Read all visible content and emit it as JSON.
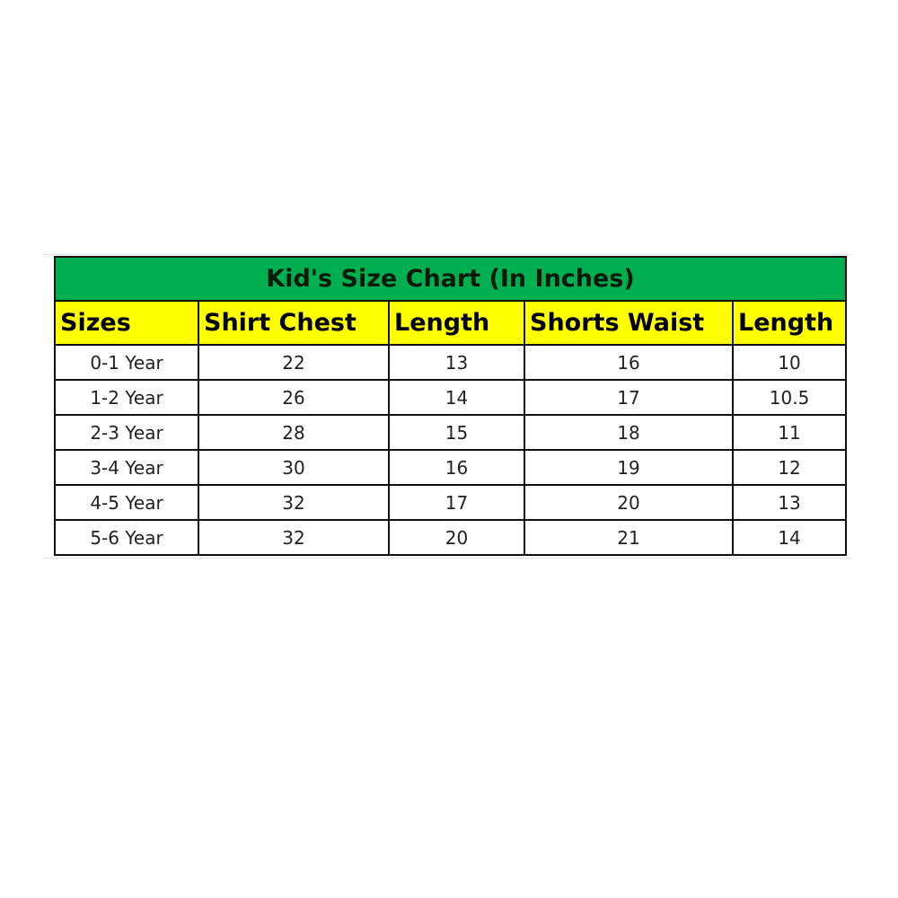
{
  "title": "Kid's Size Chart (In Inches)",
  "colors": {
    "title_bg": "#00b050",
    "header_bg": "#ffff00"
  },
  "headers": [
    "Sizes",
    "Shirt Chest",
    "Length",
    "Shorts Waist",
    "Length"
  ],
  "rows": [
    [
      "0-1 Year",
      "22",
      "13",
      "16",
      "10"
    ],
    [
      "1-2 Year",
      "26",
      "14",
      "17",
      "10.5"
    ],
    [
      "2-3 Year",
      "28",
      "15",
      "18",
      "11"
    ],
    [
      "3-4 Year",
      "30",
      "16",
      "19",
      "12"
    ],
    [
      "4-5 Year",
      "32",
      "17",
      "20",
      "13"
    ],
    [
      "5-6 Year",
      "32",
      "20",
      "21",
      "14"
    ]
  ]
}
